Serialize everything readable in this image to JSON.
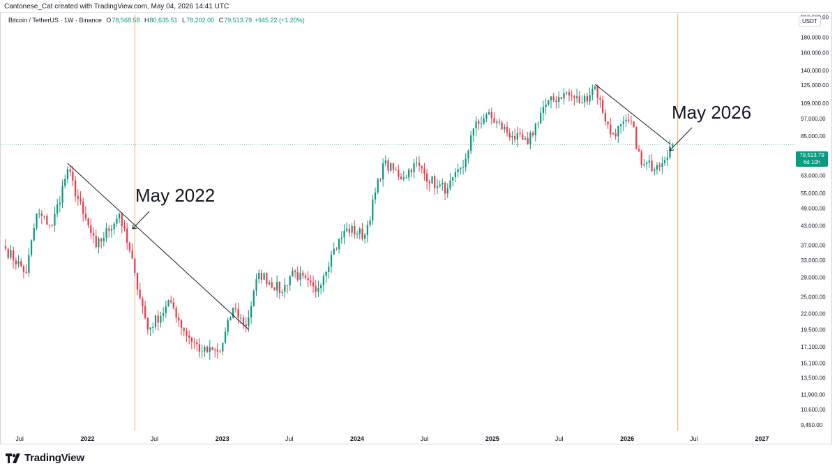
{
  "header": {
    "credit": "Cantonese_Cat created with TradingView.com, May 04, 2026 14:41 UTC"
  },
  "legend": {
    "symbol": "Bitcoin / TetherUS · 1W · Binance",
    "o_label": "O",
    "o_value": "78,568.58",
    "h_label": "H",
    "h_value": "80,635.51",
    "l_label": "L",
    "l_value": "78,202.00",
    "c_label": "C",
    "c_value": "79,513.79",
    "change": "+945.22 (+1.20%)"
  },
  "price_axis": {
    "unit": "USDT",
    "last_price": "79,513.79",
    "countdown": "6d 10h"
  },
  "brand": {
    "name": "TradingView"
  },
  "colors": {
    "up": "#089981",
    "down": "#f23645",
    "marker": "#e8b56a",
    "trend": "#131722"
  },
  "chart_data": {
    "type": "candlestick",
    "scale": "log",
    "ylim": [
      9000,
      215000
    ],
    "y_ticks": [
      {
        "value": 210000,
        "label": "210,000.00"
      },
      {
        "value": 180000,
        "label": "180,000.00"
      },
      {
        "value": 160000,
        "label": "160,000.00"
      },
      {
        "value": 140000,
        "label": "140,000.00"
      },
      {
        "value": 125000,
        "label": "125,000.00"
      },
      {
        "value": 109000,
        "label": "109,000.00"
      },
      {
        "value": 97000,
        "label": "97,000.00"
      },
      {
        "value": 85000,
        "label": "85,000.00"
      },
      {
        "value": 63000,
        "label": "63,000.00"
      },
      {
        "value": 55000,
        "label": "55,000.00"
      },
      {
        "value": 49000,
        "label": "49,000.00"
      },
      {
        "value": 43000,
        "label": "43,000.00"
      },
      {
        "value": 37000,
        "label": "37,000.00"
      },
      {
        "value": 33000,
        "label": "33,000.00"
      },
      {
        "value": 29000,
        "label": "29,000.00"
      },
      {
        "value": 25000,
        "label": "25,000.00"
      },
      {
        "value": 22000,
        "label": "22,000.00"
      },
      {
        "value": 19500,
        "label": "19,500.00"
      },
      {
        "value": 17100,
        "label": "17,100.00"
      },
      {
        "value": 15100,
        "label": "15,100.00"
      },
      {
        "value": 13500,
        "label": "13,500.00"
      },
      {
        "value": 11900,
        "label": "11,900.00"
      },
      {
        "value": 10600,
        "label": "10,600.00"
      },
      {
        "value": 9450,
        "label": "9,450.00"
      }
    ],
    "x_ticks": [
      {
        "date": "2021-07-01",
        "label": "Jul"
      },
      {
        "date": "2022-01-01",
        "label": "2022"
      },
      {
        "date": "2022-07-01",
        "label": "Jul"
      },
      {
        "date": "2023-01-01",
        "label": "2023"
      },
      {
        "date": "2023-07-01",
        "label": "Jul"
      },
      {
        "date": "2024-01-01",
        "label": "2024"
      },
      {
        "date": "2024-07-01",
        "label": "Jul"
      },
      {
        "date": "2025-01-01",
        "label": "2025"
      },
      {
        "date": "2025-07-01",
        "label": "Jul"
      },
      {
        "date": "2026-01-01",
        "label": "2026"
      },
      {
        "date": "2026-07-01",
        "label": "Jul"
      },
      {
        "date": "2027-01-01",
        "label": "2027"
      }
    ],
    "x_range": [
      "2021-05-24",
      "2027-04-01"
    ],
    "waypoints": [
      {
        "date": "2021-05-24",
        "close": 36000
      },
      {
        "date": "2021-07-19",
        "close": 30000
      },
      {
        "date": "2021-08-16",
        "close": 47000
      },
      {
        "date": "2021-09-27",
        "close": 43000
      },
      {
        "date": "2021-11-08",
        "close": 66000
      },
      {
        "date": "2021-12-20",
        "close": 47000
      },
      {
        "date": "2022-01-24",
        "close": 36500
      },
      {
        "date": "2022-03-28",
        "close": 47000
      },
      {
        "date": "2022-05-09",
        "close": 30000
      },
      {
        "date": "2022-06-13",
        "close": 19500
      },
      {
        "date": "2022-08-15",
        "close": 24000
      },
      {
        "date": "2022-09-19",
        "close": 19300
      },
      {
        "date": "2022-11-07",
        "close": 16500
      },
      {
        "date": "2022-12-26",
        "close": 16500
      },
      {
        "date": "2023-01-30",
        "close": 23000
      },
      {
        "date": "2023-03-06",
        "close": 20000
      },
      {
        "date": "2023-04-10",
        "close": 30000
      },
      {
        "date": "2023-06-12",
        "close": 26000
      },
      {
        "date": "2023-07-10",
        "close": 30500
      },
      {
        "date": "2023-09-11",
        "close": 26000
      },
      {
        "date": "2023-10-23",
        "close": 34500
      },
      {
        "date": "2023-12-04",
        "close": 42000
      },
      {
        "date": "2024-01-22",
        "close": 40000
      },
      {
        "date": "2024-03-11",
        "close": 69000
      },
      {
        "date": "2024-05-06",
        "close": 62000
      },
      {
        "date": "2024-06-03",
        "close": 69000
      },
      {
        "date": "2024-08-05",
        "close": 58000
      },
      {
        "date": "2024-09-02",
        "close": 57000
      },
      {
        "date": "2024-10-14",
        "close": 67000
      },
      {
        "date": "2024-11-11",
        "close": 90000
      },
      {
        "date": "2024-12-16",
        "close": 100000
      },
      {
        "date": "2025-02-24",
        "close": 85000
      },
      {
        "date": "2025-04-07",
        "close": 80000
      },
      {
        "date": "2025-05-19",
        "close": 106000
      },
      {
        "date": "2025-07-14",
        "close": 118000
      },
      {
        "date": "2025-09-01",
        "close": 110000
      },
      {
        "date": "2025-10-06",
        "close": 124000
      },
      {
        "date": "2025-11-17",
        "close": 86000
      },
      {
        "date": "2026-01-12",
        "close": 95000
      },
      {
        "date": "2026-02-09",
        "close": 68000
      },
      {
        "date": "2026-03-23",
        "close": 68000
      },
      {
        "date": "2026-05-04",
        "close": 79513.79
      }
    ],
    "last": {
      "date": "2026-05-04",
      "open": 78568.58,
      "high": 80635.51,
      "low": 78202.0,
      "close": 79513.79
    },
    "markers": [
      {
        "date": "2022-05-09",
        "label": "May 2022"
      },
      {
        "date": "2026-05-18",
        "label": "May 2026"
      }
    ],
    "trendlines": [
      {
        "from": {
          "date": "2021-11-08",
          "price": 69000
        },
        "to": {
          "date": "2023-03-13",
          "price": 19500
        }
      },
      {
        "from": {
          "date": "2025-10-06",
          "price": 126000
        },
        "to": {
          "date": "2026-04-27",
          "price": 80000
        }
      }
    ],
    "current_price_line": 79513.79
  }
}
